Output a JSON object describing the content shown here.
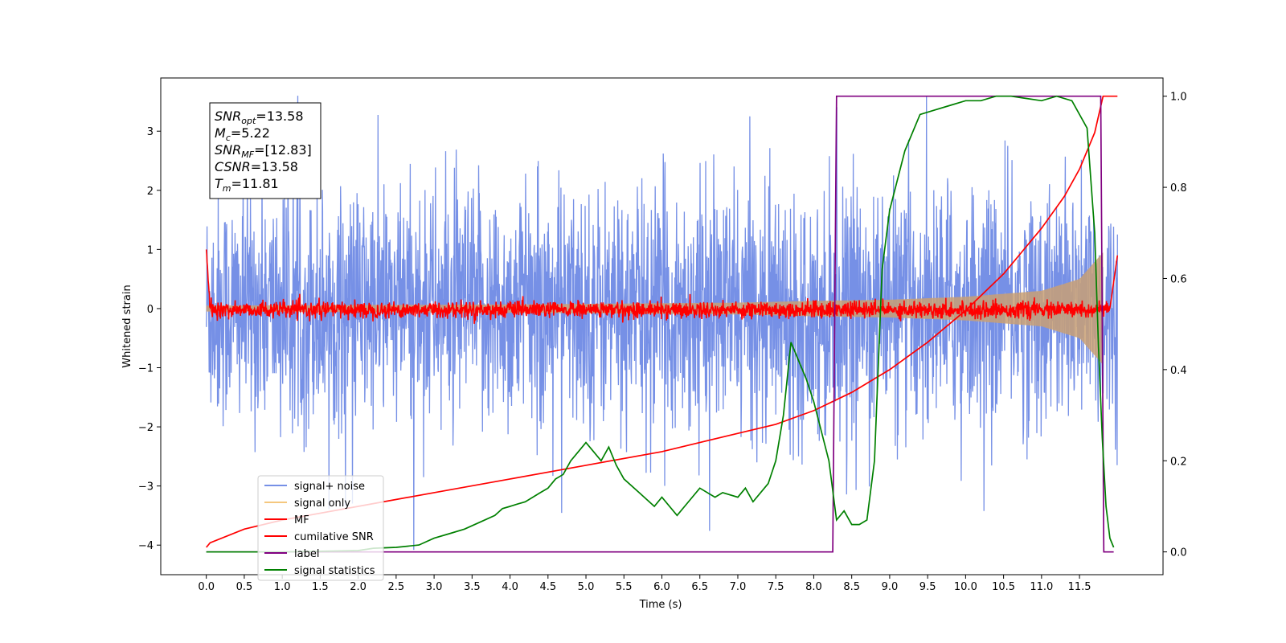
{
  "chart_data": {
    "type": "line",
    "xlabel": "Time (s)",
    "ylabel": "Whitened strain",
    "xlim": [
      -0.6,
      12.6
    ],
    "ylim": [
      -4.5,
      3.9
    ],
    "y2lim": [
      -0.05,
      1.04
    ],
    "xticks": [
      0.0,
      0.5,
      1.0,
      1.5,
      2.0,
      2.5,
      3.0,
      3.5,
      4.0,
      4.5,
      5.0,
      5.5,
      6.0,
      6.5,
      7.0,
      7.5,
      8.0,
      8.5,
      9.0,
      9.5,
      10.0,
      10.5,
      11.0,
      11.5
    ],
    "xtick_labels": [
      "0.0",
      "0.5",
      "1.0",
      "1.5",
      "2.0",
      "2.5",
      "3.0",
      "3.5",
      "4.0",
      "4.5",
      "5.0",
      "5.5",
      "6.0",
      "6.5",
      "7.0",
      "7.5",
      "8.0",
      "8.5",
      "9.0",
      "9.5",
      "10.0",
      "10.5",
      "11.0",
      "11.5"
    ],
    "yticks": [
      -4,
      -3,
      -2,
      -1,
      0,
      1,
      2,
      3
    ],
    "ytick_labels": [
      "−4",
      "−3",
      "−2",
      "−1",
      "0",
      "1",
      "2",
      "3"
    ],
    "y2ticks": [
      0.0,
      0.2,
      0.4,
      0.6,
      0.8,
      1.0
    ],
    "y2tick_labels": [
      "0.0",
      "0.2",
      "0.4",
      "0.6",
      "0.8",
      "1.0"
    ],
    "grid": false,
    "legend_position": "lower-left",
    "info_box": {
      "lines": [
        {
          "base": "SNR",
          "sub": "opt",
          "rest": "=13.58"
        },
        {
          "base": "M",
          "sub": "c",
          "rest": "=5.22"
        },
        {
          "base": "SNR",
          "sub": "MF",
          "rest": "=[12.83]"
        },
        {
          "base": "CSNR",
          "sub": "",
          "rest": "=13.58"
        },
        {
          "base": "T",
          "sub": "m",
          "rest": "=11.81"
        }
      ]
    },
    "series": [
      {
        "name": "signal+ noise",
        "color": "#7690e6",
        "axis": "left",
        "kind": "noise",
        "x_range": [
          0,
          12.0
        ],
        "amplitude_range": [
          -4.1,
          3.6
        ],
        "typical_spread": 1.0
      },
      {
        "name": "signal only",
        "color": "#f5c77e",
        "axis": "left",
        "kind": "chirp-envelope",
        "x_range": [
          0,
          12.0
        ],
        "envelope": [
          [
            0,
            0.05
          ],
          [
            4,
            0.07
          ],
          [
            7,
            0.1
          ],
          [
            8,
            0.13
          ],
          [
            9,
            0.15
          ],
          [
            10,
            0.2
          ],
          [
            11,
            0.3
          ],
          [
            11.5,
            0.5
          ],
          [
            11.81,
            0.95
          ],
          [
            11.85,
            0
          ]
        ]
      },
      {
        "name": "MF",
        "color": "#ff0000",
        "axis": "left",
        "kind": "noise",
        "x_range": [
          0,
          12.0
        ],
        "start_value": 1.0,
        "spread": 0.07
      },
      {
        "name": "cumilative SNR",
        "color": "#ff0000",
        "axis": "right",
        "x": [
          0.0,
          0.05,
          0.5,
          1.0,
          2.0,
          3.0,
          4.0,
          5.0,
          6.0,
          7.0,
          7.5,
          8.0,
          8.5,
          9.0,
          9.5,
          10.0,
          10.5,
          11.0,
          11.3,
          11.5,
          11.7,
          11.81,
          12.0
        ],
        "y": [
          0.01,
          0.02,
          0.05,
          0.07,
          0.1,
          0.13,
          0.16,
          0.19,
          0.22,
          0.26,
          0.28,
          0.31,
          0.35,
          0.4,
          0.46,
          0.53,
          0.61,
          0.71,
          0.78,
          0.84,
          0.92,
          1.0,
          1.0
        ]
      },
      {
        "name": "label",
        "color": "#800080",
        "axis": "right",
        "x": [
          0.0,
          8.25,
          8.3,
          11.78,
          11.82,
          11.95
        ],
        "y": [
          0.0,
          0.0,
          1.0,
          1.0,
          0.0,
          0.0
        ]
      },
      {
        "name": "signal statistics",
        "color": "#008000",
        "axis": "right",
        "x": [
          0.0,
          1.0,
          2.0,
          2.2,
          2.5,
          2.8,
          3.0,
          3.2,
          3.4,
          3.6,
          3.8,
          3.9,
          4.0,
          4.1,
          4.2,
          4.3,
          4.4,
          4.5,
          4.6,
          4.7,
          4.8,
          4.9,
          5.0,
          5.1,
          5.2,
          5.3,
          5.4,
          5.5,
          5.7,
          5.9,
          6.0,
          6.2,
          6.3,
          6.5,
          6.7,
          6.8,
          7.0,
          7.1,
          7.2,
          7.4,
          7.5,
          7.6,
          7.7,
          7.8,
          7.9,
          8.0,
          8.2,
          8.3,
          8.4,
          8.5,
          8.6,
          8.7,
          8.8,
          8.9,
          9.0,
          9.2,
          9.4,
          9.6,
          9.8,
          10.0,
          10.2,
          10.4,
          10.6,
          10.8,
          11.0,
          11.2,
          11.4,
          11.6,
          11.7,
          11.75,
          11.8,
          11.85,
          11.9,
          11.95
        ],
        "y": [
          0.0,
          0.0,
          0.003,
          0.008,
          0.01,
          0.015,
          0.03,
          0.04,
          0.05,
          0.065,
          0.08,
          0.095,
          0.1,
          0.105,
          0.11,
          0.12,
          0.13,
          0.14,
          0.16,
          0.17,
          0.2,
          0.22,
          0.24,
          0.22,
          0.2,
          0.23,
          0.19,
          0.16,
          0.13,
          0.1,
          0.12,
          0.08,
          0.1,
          0.14,
          0.12,
          0.13,
          0.12,
          0.14,
          0.11,
          0.15,
          0.2,
          0.3,
          0.46,
          0.42,
          0.38,
          0.33,
          0.2,
          0.07,
          0.09,
          0.06,
          0.06,
          0.07,
          0.2,
          0.62,
          0.75,
          0.88,
          0.96,
          0.97,
          0.98,
          0.99,
          0.99,
          1.0,
          1.0,
          0.995,
          0.99,
          1.0,
          0.99,
          0.93,
          0.7,
          0.45,
          0.25,
          0.1,
          0.03,
          0.01
        ]
      }
    ]
  }
}
